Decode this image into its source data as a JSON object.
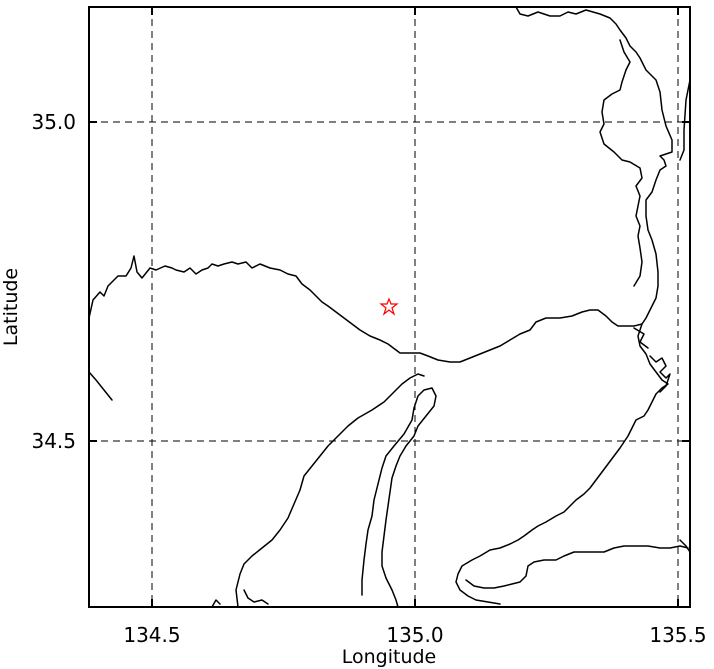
{
  "map": {
    "xlabel": "Longitude",
    "ylabel": "Latitude",
    "xlim": [
      134.38,
      135.52
    ],
    "ylim": [
      34.22,
      35.18
    ],
    "x_ticks": [
      134.5,
      135.0,
      135.5
    ],
    "y_ticks": [
      34.5,
      35.0
    ],
    "x_tick_labels": [
      "134.5",
      "135.0",
      "135.5"
    ],
    "y_tick_labels": [
      "34.5",
      "35.0"
    ],
    "grid": true,
    "marker": {
      "type": "star",
      "lon": 134.95,
      "lat": 34.71,
      "color": "#ff0000"
    },
    "coastline_color": "#000000"
  }
}
